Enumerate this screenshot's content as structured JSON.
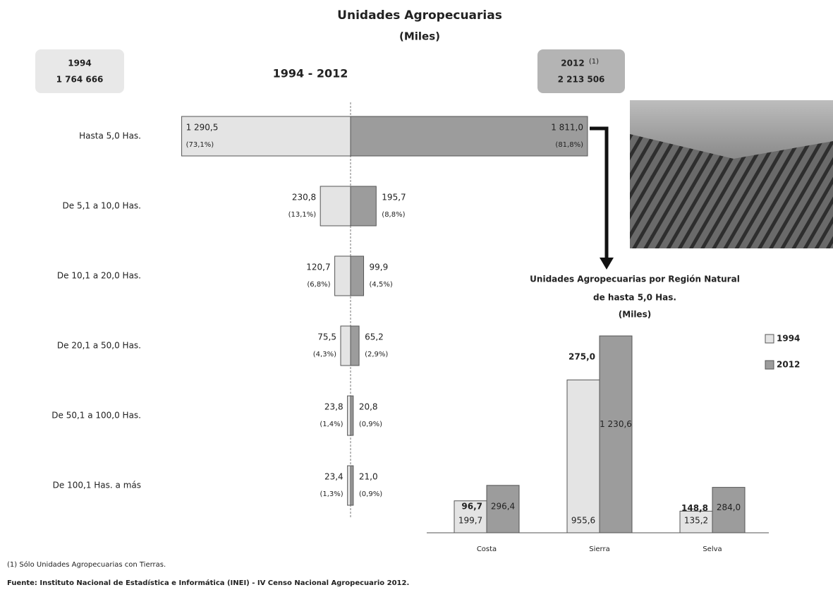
{
  "title": "Unidades Agropecuarias",
  "subtitle": "(Miles)",
  "box_1994": {
    "year": "1994",
    "total": "1 764 666"
  },
  "box_2012": {
    "year": "2012",
    "note": "(1)",
    "total": "2 213 506"
  },
  "chart_data": [
    {
      "type": "butterfly",
      "title": "1994 - 2012",
      "categories": [
        "Hasta 5,0 Has.",
        "De 5,1 a 10,0 Has.",
        "De 10,1 a 20,0 Has.",
        "De 20,1 a 50,0 Has.",
        "De 50,1 a 100,0 Has.",
        "De 100,1 Has. a más"
      ],
      "series": [
        {
          "name": "1994",
          "color": "#e4e4e4",
          "values": [
            1290.5,
            230.8,
            120.7,
            75.5,
            23.8,
            23.4
          ],
          "value_labels": [
            "1 290,5",
            "230,8",
            "120,7",
            "75,5",
            "23,8",
            "23,4"
          ],
          "percent_labels": [
            "(73,1%)",
            "(13,1%)",
            "(6,8%)",
            "(4,3%)",
            "(1,4%)",
            "(1,3%)"
          ]
        },
        {
          "name": "2012",
          "color": "#9c9c9c",
          "values": [
            1811.0,
            195.7,
            99.9,
            65.2,
            20.8,
            21.0
          ],
          "value_labels": [
            "1 811,0",
            "195,7",
            "99,9",
            "65,2",
            "20,8",
            "21,0"
          ],
          "percent_labels": [
            "(81,8%)",
            "(8,8%)",
            "(4,5%)",
            "(2,9%)",
            "(0,9%)",
            "(0,9%)"
          ]
        }
      ]
    },
    {
      "type": "bar",
      "title": "Unidades Agropecuarias por Región Natural",
      "title_line2": "de hasta 5,0 Has.",
      "subtitle": "(Miles)",
      "categories": [
        "Costa",
        "Sierra",
        "Selva"
      ],
      "series": [
        {
          "name": "1994",
          "color": "#e4e4e4",
          "values": [
            199.7,
            955.6,
            135.2
          ],
          "value_labels": [
            "199,7",
            "955,6",
            "135,2"
          ]
        },
        {
          "name": "2012",
          "color": "#9c9c9c",
          "values": [
            296.4,
            1230.6,
            284.0
          ],
          "value_labels": [
            "296,4",
            "1 230,6",
            "284,0"
          ]
        }
      ],
      "differences": {
        "values": [
          96.7,
          275.0,
          148.8
        ],
        "value_labels": [
          "96,7",
          "275,0",
          "148,8"
        ]
      }
    }
  ],
  "footnote": "(1) Sólo Unidades Agropecuarias con Tierras.",
  "source": "Fuente: Instituto Nacional de Estadística e Informática (INEI) - IV Censo Nacional Agropecuario 2012."
}
